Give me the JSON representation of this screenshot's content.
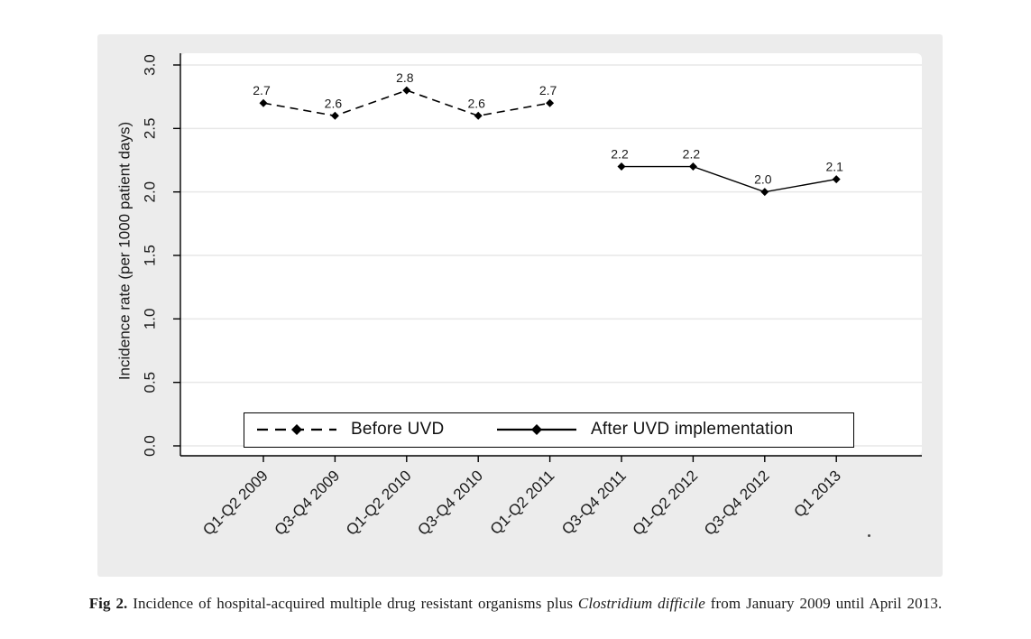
{
  "chart_data": {
    "type": "line",
    "categories": [
      "Q1-Q2 2009",
      "Q3-Q4 2009",
      "Q1-Q2 2010",
      "Q3-Q4 2010",
      "Q1-Q2 2011",
      "Q3-Q4 2011",
      "Q1-Q2 2012",
      "Q3-Q4 2012",
      "Q1 2013"
    ],
    "series": [
      {
        "name": "Before UVD",
        "line_style": "dashed",
        "marker": "diamond",
        "values": [
          2.7,
          2.6,
          2.8,
          2.6,
          2.7,
          null,
          null,
          null,
          null
        ]
      },
      {
        "name": "After UVD implementation",
        "line_style": "solid",
        "marker": "diamond",
        "values": [
          null,
          null,
          null,
          null,
          null,
          2.2,
          2.2,
          2.0,
          2.1
        ]
      }
    ],
    "title": "",
    "xlabel": "",
    "ylabel": "Incidence rate (per 1000 patient days)",
    "ylim": [
      0.0,
      3.0
    ],
    "yticks": [
      0.0,
      0.5,
      1.0,
      1.5,
      2.0,
      2.5,
      3.0
    ],
    "ytick_labels": [
      "0.0",
      "0.5",
      "1.0",
      "1.5",
      "2.0",
      "2.5",
      "3.0"
    ],
    "grid": true,
    "data_labels": true,
    "legend_position": "bottom-inside",
    "colors": {
      "figure_bg": "#ececec",
      "plot_bg": "#ffffff",
      "gridline": "#e7e7e7",
      "axis": "#000000",
      "series": "#000000",
      "caption_text": "#1c1c1c"
    }
  },
  "caption": {
    "label": "Fig 2.",
    "text1": " Incidence of hospital-acquired multiple drug resistant organisms plus ",
    "italic": "Clostridium difficile",
    "text2": " from January 2009 until April 2013."
  }
}
